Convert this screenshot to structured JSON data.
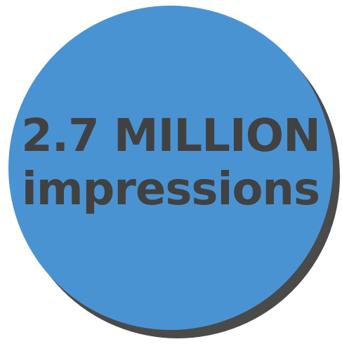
{
  "badge": {
    "headline": "2.7 MILLION",
    "subline": "impressions",
    "fill_color": "#4a93d3",
    "shadow_color": "#4a4a4a",
    "text_color": "#414141"
  }
}
